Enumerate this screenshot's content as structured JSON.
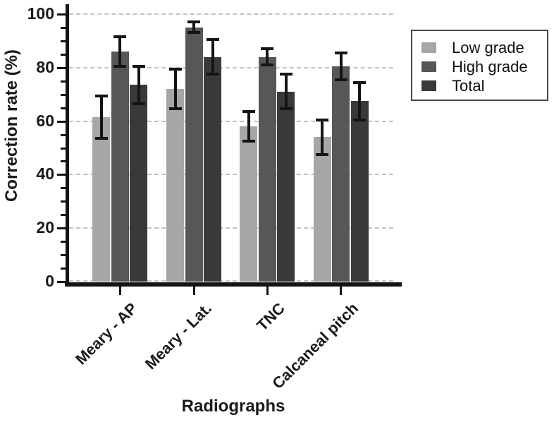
{
  "chart_data": {
    "type": "bar",
    "title": "",
    "xlabel": "Radiographs",
    "ylabel": "Correction rate (%)",
    "ylim": [
      0,
      100
    ],
    "yticks": [
      0,
      20,
      40,
      60,
      80,
      100
    ],
    "minor_tick_step": 5,
    "grid": "horizontal dashed at major ticks",
    "legend_position": "outside-top-right",
    "error_bars": true,
    "categories": [
      "Meary - AP",
      "Meary - Lat.",
      "TNC",
      "Calcaneal pitch"
    ],
    "series": [
      {
        "name": "Low grade",
        "color": "#a6a6a6",
        "values": [
          61.5,
          72,
          58,
          54
        ],
        "errors": [
          8.5,
          8,
          6,
          7
        ]
      },
      {
        "name": "High grade",
        "color": "#575757",
        "values": [
          86,
          95,
          84,
          80.5
        ],
        "errors": [
          6,
          2.5,
          3.5,
          5.5
        ]
      },
      {
        "name": "Total",
        "color": "#393939",
        "values": [
          73.5,
          84,
          71,
          67.5
        ],
        "errors": [
          7.5,
          7,
          7,
          7.5
        ]
      }
    ]
  },
  "colors": {
    "axis": "#141414",
    "grid": "#c3c3c3",
    "text": "#1a1a1a",
    "legend_border": "#4a4a4a"
  }
}
